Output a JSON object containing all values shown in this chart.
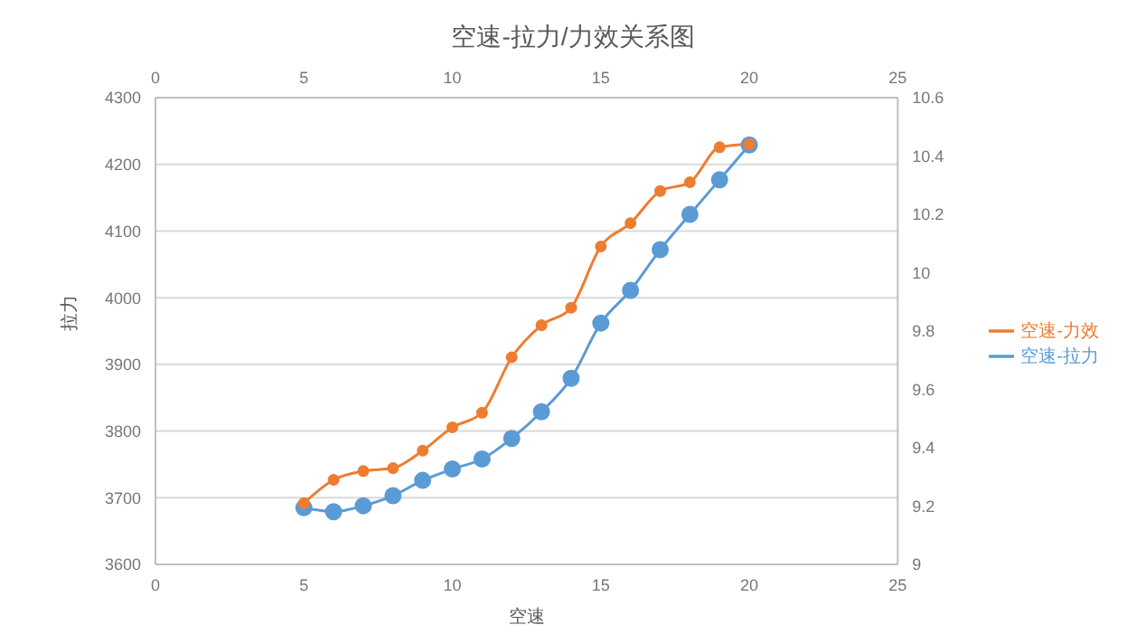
{
  "chart_data": {
    "type": "line",
    "title": "空速-拉力/力效关系图",
    "xlabel": "空速",
    "ylabel": "拉力",
    "x": [
      5,
      6,
      7,
      8,
      9,
      10,
      11,
      12,
      13,
      14,
      15,
      16,
      17,
      18,
      19,
      20
    ],
    "series": [
      {
        "name": "空速-拉力",
        "color": "#5b9bd5",
        "values": [
          3685,
          3679,
          3688,
          3703,
          3726,
          3743,
          3758,
          3789,
          3829,
          3879,
          3962,
          4011,
          4072,
          4125,
          4177,
          4229
        ]
      },
      {
        "name": "空速-力效",
        "color": "#ed7d31",
        "axis": "y2",
        "values": [
          9.21,
          9.29,
          9.32,
          9.33,
          9.39,
          9.47,
          9.52,
          9.71,
          9.82,
          9.88,
          10.09,
          10.17,
          10.28,
          10.31,
          10.43,
          10.44
        ]
      }
    ],
    "xlim": [
      0,
      25
    ],
    "xticks": [
      0,
      5,
      10,
      15,
      20,
      25
    ],
    "x2lim": [
      0,
      25
    ],
    "x2ticks": [
      0,
      5,
      10,
      15,
      20,
      25
    ],
    "ylim": [
      3600,
      4300
    ],
    "yticks": [
      3600,
      3700,
      3800,
      3900,
      4000,
      4100,
      4200,
      4300
    ],
    "y2lim": [
      9,
      10.6
    ],
    "y2ticks": [
      9,
      9.2,
      9.4,
      9.6,
      9.8,
      10,
      10.2,
      10.4,
      10.6
    ],
    "grid": "y",
    "legend": "right",
    "marker": "circle",
    "line_style": "solid"
  }
}
